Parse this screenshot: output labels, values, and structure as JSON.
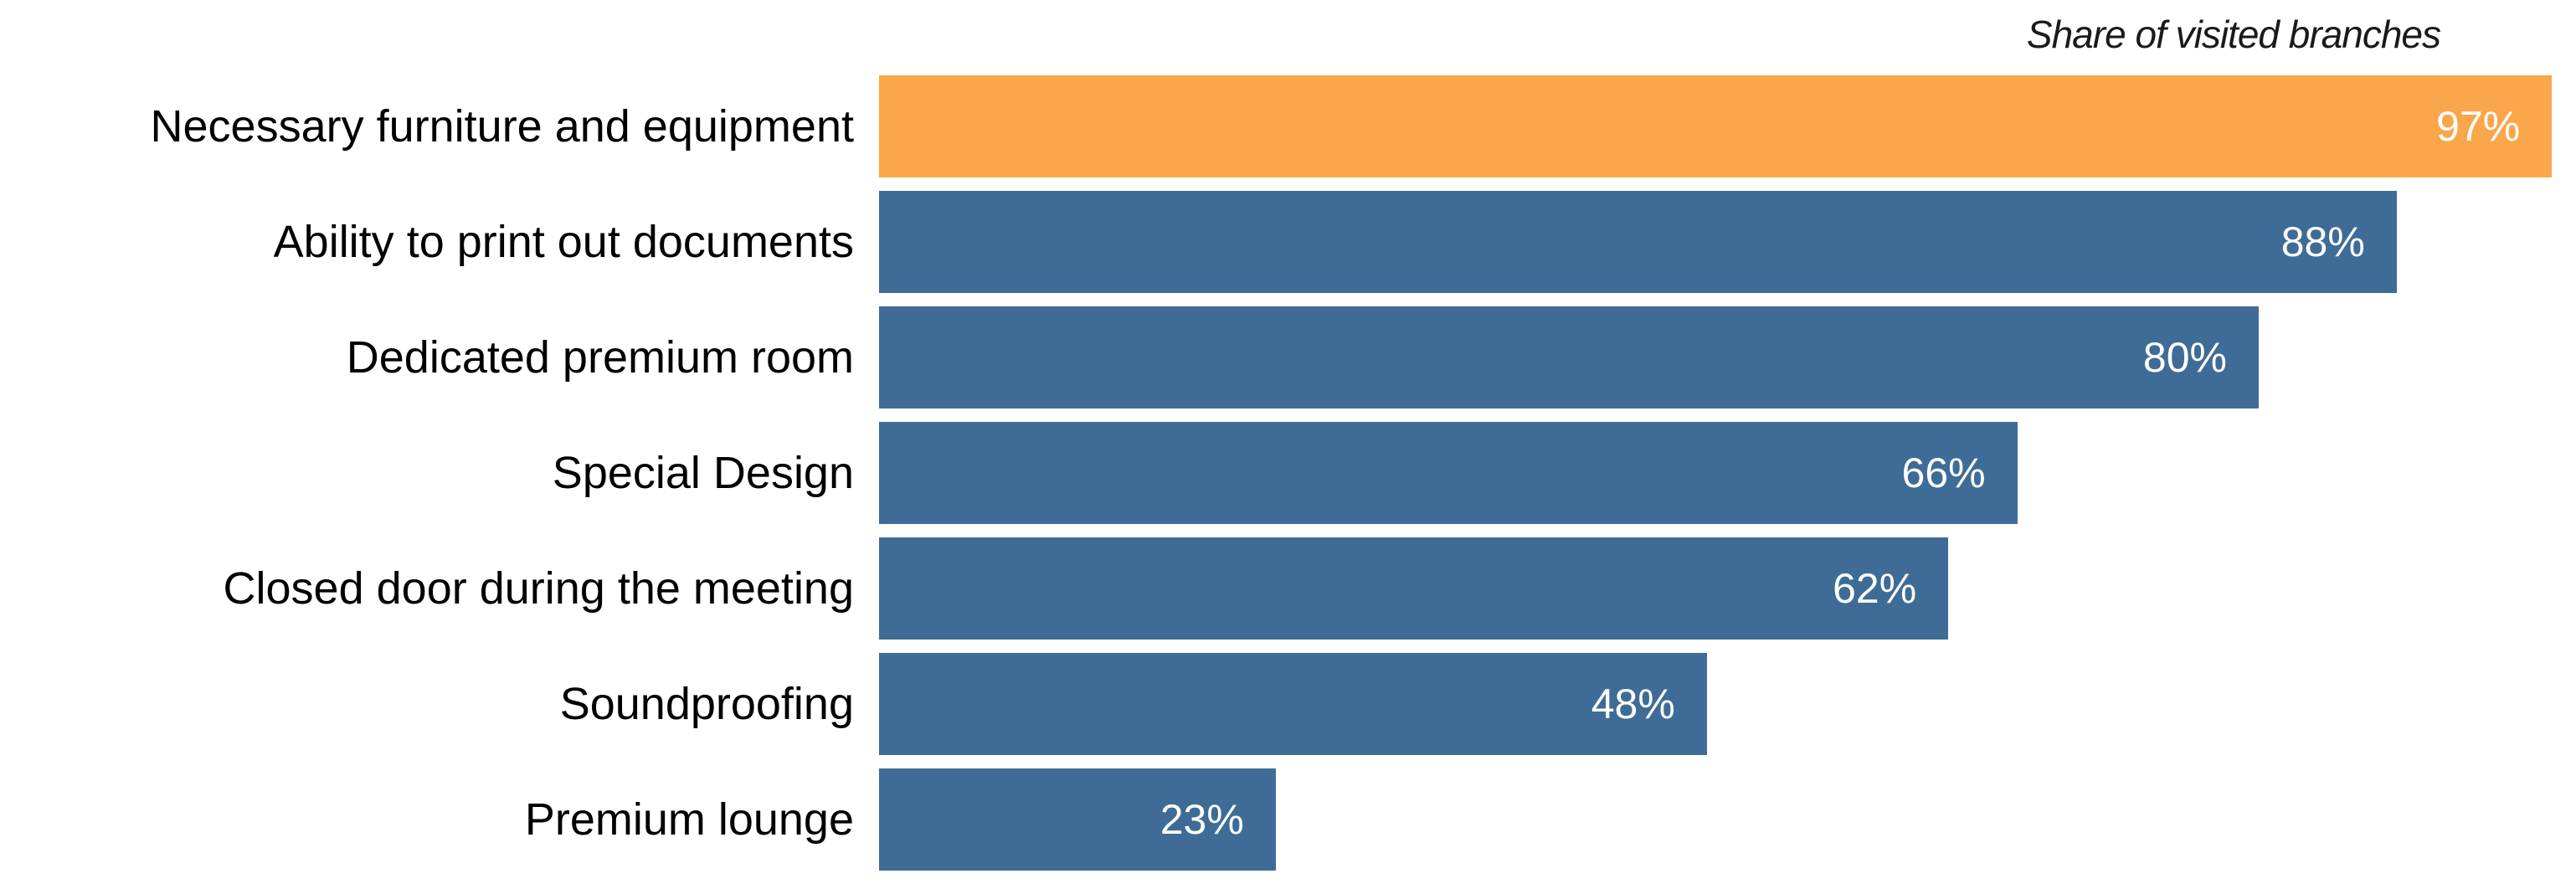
{
  "chart_data": {
    "type": "bar",
    "orientation": "horizontal",
    "title": "Share of visited branches",
    "categories": [
      "Necessary furniture and equipment",
      "Ability to print out documents",
      "Dedicated premium room",
      "Special Design",
      "Closed door during the meeting",
      "Soundproofing",
      "Premium lounge"
    ],
    "values": [
      97,
      88,
      80,
      66,
      62,
      48,
      23
    ],
    "value_labels": [
      "97%",
      "88%",
      "80%",
      "66%",
      "62%",
      "48%",
      "23%"
    ],
    "highlight_index": 0,
    "xlabel": "",
    "ylabel": "",
    "xlim": [
      0,
      100
    ],
    "grid": false,
    "legend": false,
    "colors": {
      "highlight_bar": "#FAA64B",
      "default_bar": "#3E6C96",
      "value_text": "#FFFFFF",
      "category_text": "#000000",
      "background": "#FFFFFF"
    }
  }
}
